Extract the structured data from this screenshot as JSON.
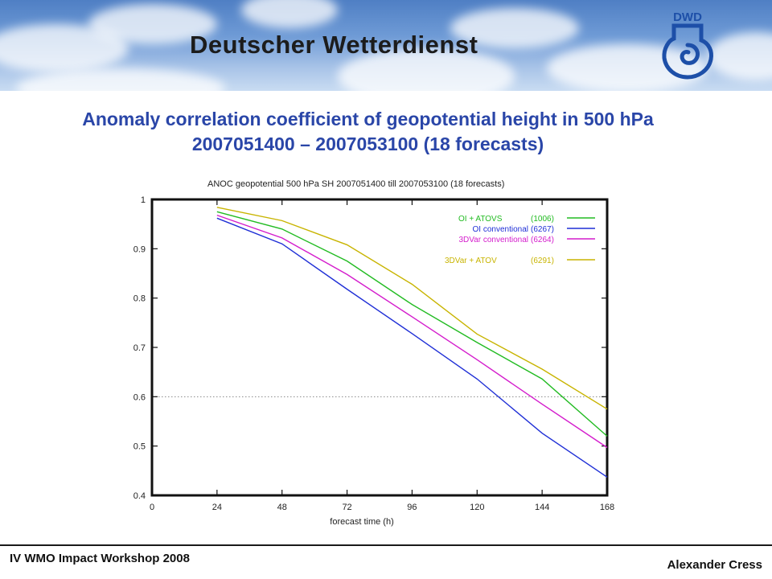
{
  "header": {
    "org_name": "Deutscher Wetterdienst",
    "logo_text": "DWD"
  },
  "slide": {
    "title_line1": "Anomaly correlation coefficient of geopotential height in 500 hPa",
    "title_line2": "2007051400 – 2007053100 (18 forecasts)"
  },
  "footer": {
    "left": "IV WMO Impact Workshop 2008",
    "right": "Alexander Cress"
  },
  "chart_data": {
    "type": "line",
    "title": "ANOC geopotential 500 hPa  SH    2007051400 till 2007053100  (18 forecasts)",
    "xlabel": "forecast time (h)",
    "ylabel": "",
    "xlim": [
      0,
      168
    ],
    "ylim": [
      0.4,
      1.0
    ],
    "xticks": [
      0,
      24,
      48,
      72,
      96,
      120,
      144,
      168
    ],
    "yticks": [
      0.4,
      0.5,
      0.6,
      0.7,
      0.8,
      0.9,
      1
    ],
    "reference_line": 0.6,
    "legend_position": "top-right",
    "x": [
      24,
      48,
      72,
      96,
      120,
      144,
      168
    ],
    "series": [
      {
        "name": "OI  + ATOVS",
        "count": "(1006)",
        "color": "#22bb22",
        "values": [
          0.975,
          0.94,
          0.875,
          0.787,
          0.71,
          0.636,
          0.52
        ]
      },
      {
        "name": "OI  conventional",
        "count": "(6267)",
        "color": "#1f2fd6",
        "values": [
          0.962,
          0.91,
          0.818,
          0.728,
          0.636,
          0.526,
          0.437
        ]
      },
      {
        "name": "3DVar  conventional",
        "count": "(6264)",
        "color": "#d41ccc",
        "values": [
          0.968,
          0.922,
          0.848,
          0.762,
          0.675,
          0.585,
          0.497
        ]
      },
      {
        "name": "3DVar  + ATOV",
        "count": "(6291)",
        "color": "#c8b400",
        "values": [
          0.984,
          0.957,
          0.908,
          0.828,
          0.727,
          0.656,
          0.575
        ]
      }
    ]
  }
}
